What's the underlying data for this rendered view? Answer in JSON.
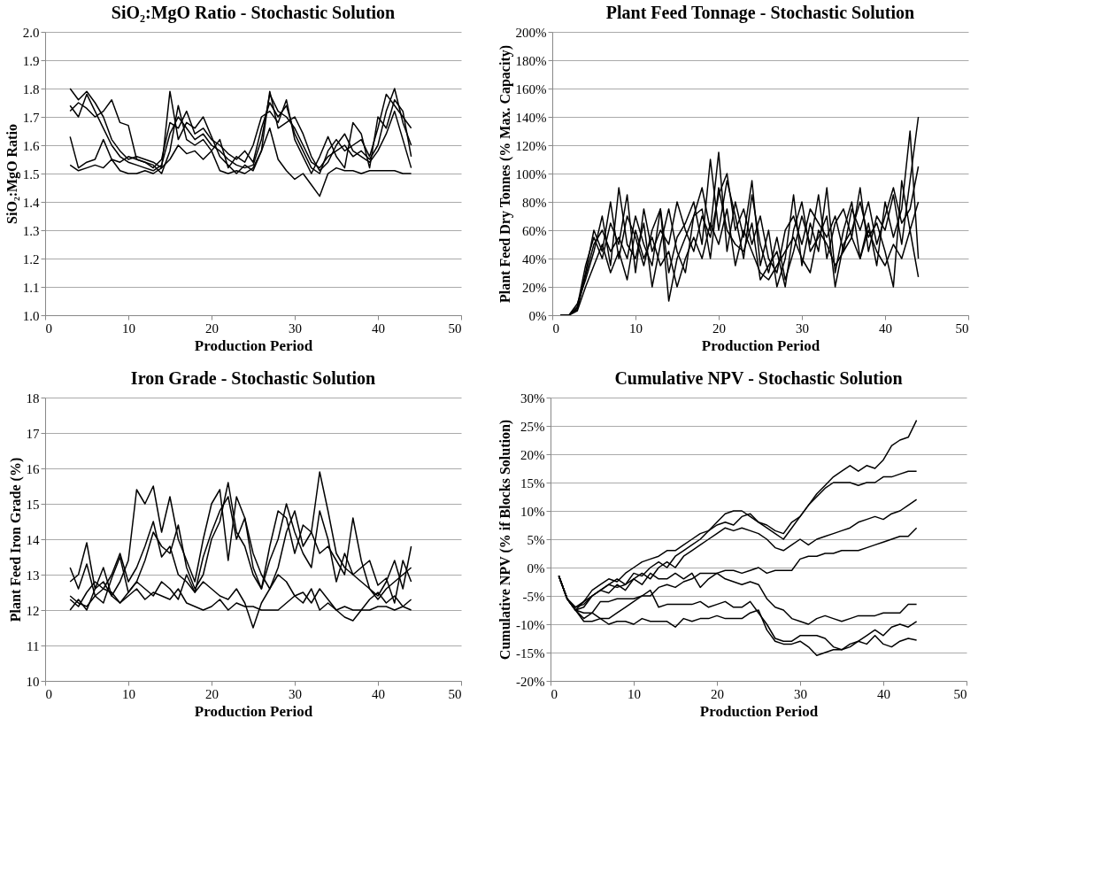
{
  "chart_data": [
    {
      "type": "line",
      "title": "SiO₂:MgO Ratio - Stochastic Solution",
      "xlabel": "Production Period",
      "ylabel": "SiO₂:MgO Ratio",
      "xlim": [
        0,
        50
      ],
      "xticks": [
        0,
        10,
        20,
        30,
        40,
        50
      ],
      "ylim": [
        1.0,
        2.0
      ],
      "yticks": [
        {
          "value": 1.0,
          "label": "1.0"
        },
        1.1,
        1.2,
        1.3,
        1.4,
        1.5,
        1.6,
        1.7,
        1.8,
        1.9,
        {
          "value": 2.0,
          "label": "2.0"
        }
      ],
      "grid": "y",
      "legend": false,
      "marker": "none",
      "line_style": "solid",
      "x": [
        3,
        4,
        5,
        6,
        7,
        8,
        9,
        10,
        11,
        12,
        13,
        14,
        15,
        16,
        17,
        18,
        19,
        20,
        21,
        22,
        23,
        24,
        25,
        26,
        27,
        28,
        29,
        30,
        31,
        32,
        33,
        34,
        35,
        36,
        37,
        38,
        39,
        40,
        41,
        42,
        43,
        44
      ],
      "series": [
        {
          "color": "#000000",
          "values": [
            1.74,
            1.7,
            1.78,
            1.72,
            1.66,
            1.6,
            1.56,
            1.54,
            1.53,
            1.52,
            1.51,
            1.53,
            1.64,
            1.7,
            1.66,
            1.62,
            1.64,
            1.6,
            1.58,
            1.55,
            1.53,
            1.52,
            1.53,
            1.62,
            1.78,
            1.72,
            1.7,
            1.66,
            1.6,
            1.54,
            1.52,
            1.56,
            1.58,
            1.6,
            1.56,
            1.58,
            1.55,
            1.6,
            1.72,
            1.8,
            1.68,
            1.6
          ]
        },
        {
          "color": "#000000",
          "values": [
            1.72,
            1.75,
            1.73,
            1.7,
            1.72,
            1.76,
            1.68,
            1.67,
            1.55,
            1.54,
            1.52,
            1.55,
            1.68,
            1.66,
            1.72,
            1.64,
            1.66,
            1.62,
            1.6,
            1.57,
            1.55,
            1.58,
            1.54,
            1.66,
            1.75,
            1.7,
            1.74,
            1.64,
            1.58,
            1.52,
            1.5,
            1.58,
            1.62,
            1.58,
            1.6,
            1.62,
            1.56,
            1.66,
            1.78,
            1.74,
            1.7,
            1.66
          ]
        },
        {
          "color": "#000000",
          "values": [
            1.53,
            1.51,
            1.52,
            1.53,
            1.52,
            1.55,
            1.51,
            1.5,
            1.5,
            1.51,
            1.5,
            1.52,
            1.55,
            1.6,
            1.57,
            1.58,
            1.55,
            1.58,
            1.51,
            1.5,
            1.51,
            1.5,
            1.52,
            1.58,
            1.66,
            1.55,
            1.51,
            1.48,
            1.5,
            1.46,
            1.42,
            1.5,
            1.52,
            1.51,
            1.51,
            1.5,
            1.51,
            1.51,
            1.51,
            1.51,
            1.5,
            1.5
          ]
        },
        {
          "color": "#000000",
          "values": [
            1.63,
            1.52,
            1.54,
            1.55,
            1.62,
            1.55,
            1.54,
            1.56,
            1.55,
            1.54,
            1.53,
            1.5,
            1.58,
            1.74,
            1.62,
            1.6,
            1.62,
            1.58,
            1.62,
            1.52,
            1.56,
            1.54,
            1.6,
            1.7,
            1.72,
            1.68,
            1.76,
            1.62,
            1.56,
            1.5,
            1.56,
            1.63,
            1.56,
            1.52,
            1.68,
            1.64,
            1.52,
            1.7,
            1.66,
            1.76,
            1.72,
            1.56
          ]
        },
        {
          "color": "#000000",
          "values": [
            1.8,
            1.76,
            1.79,
            1.75,
            1.7,
            1.62,
            1.58,
            1.55,
            1.56,
            1.55,
            1.54,
            1.52,
            1.79,
            1.62,
            1.68,
            1.66,
            1.7,
            1.63,
            1.56,
            1.53,
            1.5,
            1.53,
            1.51,
            1.58,
            1.79,
            1.66,
            1.68,
            1.7,
            1.64,
            1.56,
            1.51,
            1.54,
            1.6,
            1.64,
            1.58,
            1.56,
            1.54,
            1.58,
            1.64,
            1.72,
            1.62,
            1.52
          ]
        }
      ]
    },
    {
      "type": "line",
      "title": "Plant Feed Tonnage - Stochastic Solution",
      "xlabel": "Production Period",
      "ylabel": "Plant Feed Dry Tonnes (% Max. Capacity)",
      "xlim": [
        0,
        50
      ],
      "xticks": [
        0,
        10,
        20,
        30,
        40,
        50
      ],
      "ylim": [
        0,
        200
      ],
      "yticks": [
        {
          "value": 0,
          "label": "0%"
        },
        {
          "value": 20,
          "label": "20%"
        },
        {
          "value": 40,
          "label": "40%"
        },
        {
          "value": 60,
          "label": "60%"
        },
        {
          "value": 80,
          "label": "80%"
        },
        {
          "value": 100,
          "label": "100%"
        },
        {
          "value": 120,
          "label": "120%"
        },
        {
          "value": 140,
          "label": "140%"
        },
        {
          "value": 160,
          "label": "160%"
        },
        {
          "value": 180,
          "label": "180%"
        },
        {
          "value": 200,
          "label": "200%"
        }
      ],
      "grid": "y",
      "legend": false,
      "marker": "none",
      "line_style": "solid",
      "x": [
        1,
        2,
        3,
        4,
        5,
        6,
        7,
        8,
        9,
        10,
        11,
        12,
        13,
        14,
        15,
        16,
        17,
        18,
        19,
        20,
        21,
        22,
        23,
        24,
        25,
        26,
        27,
        28,
        29,
        30,
        31,
        32,
        33,
        34,
        35,
        36,
        37,
        38,
        39,
        40,
        41,
        42,
        43,
        44
      ],
      "series": [
        {
          "color": "#000000",
          "values": [
            0,
            0,
            5,
            30,
            60,
            45,
            80,
            40,
            70,
            55,
            35,
            60,
            75,
            30,
            55,
            65,
            80,
            50,
            110,
            60,
            95,
            70,
            40,
            85,
            50,
            30,
            55,
            25,
            45,
            70,
            50,
            85,
            40,
            65,
            75,
            55,
            90,
            45,
            70,
            60,
            85,
            50,
            95,
            140
          ]
        },
        {
          "color": "#000000",
          "values": [
            0,
            0,
            8,
            25,
            45,
            70,
            35,
            90,
            50,
            40,
            65,
            20,
            50,
            75,
            45,
            30,
            70,
            90,
            60,
            115,
            45,
            80,
            55,
            95,
            35,
            60,
            20,
            40,
            85,
            35,
            65,
            45,
            90,
            30,
            60,
            80,
            40,
            65,
            35,
            80,
            55,
            75,
            130,
            40
          ]
        },
        {
          "color": "#000000",
          "values": [
            0,
            0,
            3,
            20,
            35,
            50,
            30,
            45,
            25,
            60,
            40,
            55,
            35,
            45,
            20,
            40,
            55,
            40,
            65,
            50,
            75,
            35,
            60,
            45,
            30,
            25,
            35,
            45,
            55,
            40,
            30,
            60,
            50,
            35,
            45,
            55,
            40,
            60,
            45,
            35,
            50,
            40,
            60,
            27
          ]
        },
        {
          "color": "#000000",
          "values": [
            0,
            0,
            6,
            35,
            55,
            40,
            65,
            50,
            85,
            30,
            75,
            45,
            60,
            50,
            80,
            60,
            45,
            70,
            55,
            85,
            100,
            60,
            75,
            50,
            70,
            40,
            30,
            60,
            70,
            50,
            75,
            65,
            55,
            70,
            45,
            75,
            60,
            80,
            50,
            70,
            90,
            65,
            75,
            105
          ]
        },
        {
          "color": "#000000",
          "values": [
            0,
            0,
            4,
            28,
            50,
            60,
            45,
            55,
            40,
            70,
            50,
            35,
            75,
            10,
            40,
            55,
            70,
            75,
            40,
            90,
            60,
            50,
            45,
            65,
            25,
            35,
            45,
            20,
            60,
            80,
            45,
            55,
            70,
            20,
            50,
            60,
            80,
            55,
            65,
            45,
            20,
            95,
            60,
            80
          ]
        }
      ]
    },
    {
      "type": "line",
      "title": "Iron Grade  - Stochastic Solution",
      "xlabel": "Production Period",
      "ylabel": "Plant Feed Iron Grade (%)",
      "xlim": [
        0,
        50
      ],
      "xticks": [
        0,
        10,
        20,
        30,
        40,
        50
      ],
      "ylim": [
        10,
        18
      ],
      "yticks": [
        10,
        11,
        12,
        13,
        14,
        15,
        16,
        17,
        18
      ],
      "grid": "y",
      "legend": false,
      "marker": "none",
      "line_style": "solid",
      "x": [
        3,
        4,
        5,
        6,
        7,
        8,
        9,
        10,
        11,
        12,
        13,
        14,
        15,
        16,
        17,
        18,
        19,
        20,
        21,
        22,
        23,
        24,
        25,
        26,
        27,
        28,
        29,
        30,
        31,
        32,
        33,
        34,
        35,
        36,
        37,
        38,
        39,
        40,
        41,
        42,
        43,
        44
      ],
      "series": [
        {
          "color": "#000000",
          "values": [
            12.3,
            12.1,
            12.5,
            12.8,
            12.6,
            13.0,
            13.6,
            12.8,
            13.2,
            13.8,
            14.5,
            13.5,
            13.8,
            13.0,
            12.8,
            12.5,
            13.5,
            14.2,
            14.8,
            15.2,
            14.0,
            14.6,
            13.6,
            13.0,
            12.6,
            13.2,
            14.2,
            14.8,
            13.8,
            14.2,
            15.9,
            14.8,
            13.6,
            13.2,
            13.0,
            12.8,
            12.6,
            12.3,
            12.6,
            12.8,
            13.0,
            13.2
          ]
        },
        {
          "color": "#000000",
          "values": [
            12.8,
            13.0,
            13.9,
            12.6,
            13.2,
            12.4,
            12.8,
            13.4,
            15.4,
            15.0,
            15.5,
            14.2,
            15.2,
            14.0,
            13.4,
            12.8,
            14.0,
            15.0,
            15.4,
            13.4,
            15.2,
            14.6,
            13.2,
            12.6,
            13.8,
            14.8,
            14.6,
            13.6,
            14.4,
            14.2,
            13.6,
            13.8,
            13.4,
            13.0,
            14.6,
            13.4,
            12.6,
            12.4,
            12.8,
            13.4,
            12.6,
            13.8
          ]
        },
        {
          "color": "#000000",
          "values": [
            12.4,
            12.2,
            12.1,
            12.4,
            12.6,
            12.5,
            12.2,
            12.4,
            12.6,
            12.3,
            12.5,
            12.4,
            12.3,
            12.6,
            12.2,
            12.1,
            12.0,
            12.1,
            12.3,
            12.0,
            12.2,
            12.1,
            12.1,
            12.0,
            12.0,
            12.0,
            12.2,
            12.4,
            12.2,
            12.6,
            12.0,
            12.2,
            12.0,
            12.1,
            12.0,
            12.0,
            12.0,
            12.1,
            12.1,
            12.0,
            12.1,
            12.0
          ]
        },
        {
          "color": "#000000",
          "values": [
            12.0,
            12.3,
            12.0,
            12.6,
            12.8,
            12.4,
            12.2,
            12.5,
            12.8,
            12.6,
            12.4,
            12.8,
            12.6,
            12.3,
            13.0,
            12.5,
            12.8,
            12.6,
            12.4,
            12.3,
            12.6,
            12.2,
            11.5,
            12.2,
            12.6,
            13.0,
            12.8,
            12.4,
            12.5,
            12.2,
            12.6,
            12.3,
            12.0,
            11.8,
            11.7,
            12.0,
            12.3,
            12.5,
            12.2,
            12.4,
            12.1,
            12.3
          ]
        },
        {
          "color": "#000000",
          "values": [
            13.2,
            12.6,
            13.3,
            12.4,
            12.2,
            12.9,
            13.5,
            12.5,
            12.8,
            13.4,
            14.2,
            13.8,
            13.6,
            14.4,
            13.2,
            12.6,
            13.0,
            14.0,
            14.5,
            15.6,
            14.2,
            13.8,
            13.0,
            12.6,
            13.4,
            14.0,
            15.0,
            14.2,
            13.6,
            13.2,
            14.8,
            14.0,
            12.8,
            13.6,
            13.0,
            13.2,
            13.4,
            12.7,
            12.9,
            12.2,
            13.4,
            12.8
          ]
        }
      ]
    },
    {
      "type": "line",
      "title": "Cumulative NPV - Stochastic Solution",
      "xlabel": "Production Period",
      "ylabel": "Cumulative NPV (% if Blocks Solution)",
      "xlim": [
        0,
        50
      ],
      "xticks": [
        0,
        10,
        20,
        30,
        40,
        50
      ],
      "ylim": [
        -20,
        30
      ],
      "yticks": [
        {
          "value": -20,
          "label": "-20%"
        },
        {
          "value": -15,
          "label": "-15%"
        },
        {
          "value": -10,
          "label": "-10%"
        },
        {
          "value": -5,
          "label": "-5%"
        },
        {
          "value": 0,
          "label": "0%"
        },
        {
          "value": 5,
          "label": "5%"
        },
        {
          "value": 10,
          "label": "10%"
        },
        {
          "value": 15,
          "label": "15%"
        },
        {
          "value": 20,
          "label": "20%"
        },
        {
          "value": 25,
          "label": "25%"
        },
        {
          "value": 30,
          "label": "30%"
        }
      ],
      "grid": "y",
      "legend": false,
      "marker": "none",
      "line_style": "solid",
      "x": [
        1,
        2,
        3,
        4,
        5,
        6,
        7,
        8,
        9,
        10,
        11,
        12,
        13,
        14,
        15,
        16,
        17,
        18,
        19,
        20,
        21,
        22,
        23,
        24,
        25,
        26,
        27,
        28,
        29,
        30,
        31,
        32,
        33,
        34,
        35,
        36,
        37,
        38,
        39,
        40,
        41,
        42,
        43,
        44
      ],
      "series": [
        {
          "color": "#000000",
          "values": [
            -1.5,
            -5.5,
            -7.5,
            -6,
            -4,
            -3,
            -2,
            -2.5,
            -1,
            0,
            1,
            1.5,
            2,
            3,
            3,
            4,
            5,
            6,
            6.5,
            7.5,
            8,
            7.5,
            9,
            9.5,
            8,
            7,
            6,
            5,
            7,
            9,
            11,
            13,
            14.5,
            16,
            17,
            18,
            17,
            18,
            17.5,
            19,
            21.5,
            22.5,
            23,
            26
          ]
        },
        {
          "color": "#000000",
          "values": [
            -1.5,
            -5.5,
            -7.5,
            -7,
            -5,
            -4,
            -3,
            -2,
            -3,
            -1,
            -1.5,
            0,
            1,
            0,
            2,
            3,
            4,
            5,
            6.5,
            8,
            9.5,
            10,
            10,
            9,
            8,
            7.5,
            6.5,
            6,
            8,
            9,
            11,
            12.5,
            14,
            15,
            15,
            15,
            14.5,
            15,
            15,
            16,
            16,
            16.5,
            17,
            17
          ]
        },
        {
          "color": "#000000",
          "values": [
            -1.5,
            -5.5,
            -7,
            -6.5,
            -5,
            -4,
            -3,
            -3.5,
            -3,
            -2,
            -1,
            -2,
            0,
            1,
            0,
            2,
            3,
            4,
            5,
            6,
            7,
            6.5,
            7,
            6.5,
            6,
            5,
            3.5,
            3,
            4,
            5,
            4,
            5,
            5.5,
            6,
            6.5,
            7,
            8,
            8.5,
            9,
            8.5,
            9.5,
            10,
            11,
            12
          ]
        },
        {
          "color": "#000000",
          "values": [
            -1.5,
            -5.5,
            -7.5,
            -9,
            -8,
            -6,
            -6,
            -5.5,
            -5.5,
            -5.5,
            -5,
            -5,
            -3.5,
            -3,
            -3.5,
            -2.5,
            -2,
            -1,
            -1,
            -1,
            -0.5,
            -0.5,
            -1,
            -0.5,
            0,
            -1,
            -0.5,
            -0.5,
            -0.5,
            1.5,
            2,
            2,
            2.5,
            2.5,
            3,
            3,
            3,
            3.5,
            4,
            4.5,
            5,
            5.5,
            5.5,
            7
          ]
        },
        {
          "color": "#000000",
          "values": [
            -1.5,
            -5.5,
            -7.5,
            -9.5,
            -9.5,
            -9,
            -10,
            -9.5,
            -9.5,
            -10,
            -9,
            -9.5,
            -9.5,
            -9.5,
            -10.5,
            -9,
            -9.5,
            -9,
            -9,
            -8.5,
            -9,
            -9,
            -9,
            -8,
            -7.5,
            -11,
            -13,
            -13.5,
            -13.5,
            -13,
            -14,
            -15.5,
            -15,
            -14.5,
            -14.5,
            -14,
            -13,
            -13.5,
            -12,
            -13.5,
            -14,
            -13,
            -12.5,
            -12.8
          ]
        },
        {
          "color": "#000000",
          "values": [
            -1.5,
            -5.5,
            -7.5,
            -8,
            -8,
            -9,
            -9,
            -8,
            -7,
            -6,
            -5,
            -4,
            -7,
            -6.5,
            -6.5,
            -6.5,
            -6.5,
            -6,
            -7,
            -6.5,
            -6,
            -7,
            -7,
            -6,
            -8,
            -10,
            -12.5,
            -13,
            -13,
            -12,
            -12,
            -12,
            -12.5,
            -14,
            -14.5,
            -13.5,
            -13,
            -12,
            -11,
            -12,
            -10.5,
            -10,
            -10.5,
            -9.5
          ]
        },
        {
          "color": "#000000",
          "values": [
            -1.5,
            -5.5,
            -7,
            -6,
            -5,
            -4,
            -4.5,
            -3,
            -4,
            -2,
            -3,
            -1,
            -2,
            -2,
            -1,
            -2,
            -1,
            -3.5,
            -2,
            -1,
            -2,
            -2.5,
            -3,
            -2.5,
            -3,
            -5.5,
            -7,
            -7.5,
            -9,
            -9.5,
            -10,
            -9,
            -8.5,
            -9,
            -9.5,
            -9,
            -8.5,
            -8.5,
            -8.5,
            -8,
            -8,
            -8,
            -6.5,
            -6.5
          ]
        }
      ]
    }
  ]
}
